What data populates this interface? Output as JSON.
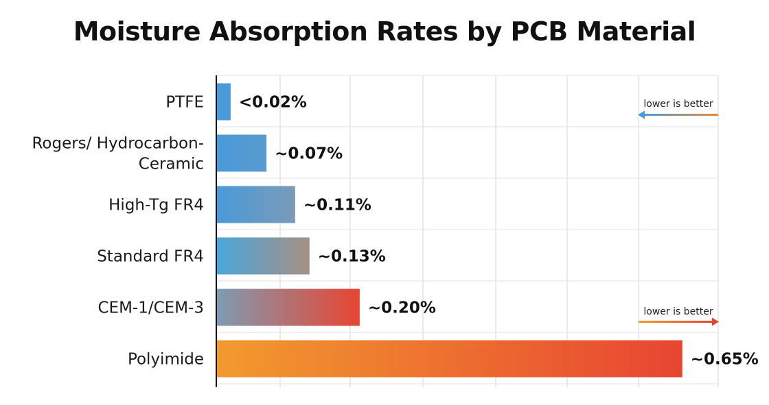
{
  "chart_data": {
    "type": "bar",
    "orientation": "horizontal",
    "title": "Moisture Absorption Rates by PCB Material",
    "xlabel": "",
    "ylabel": "",
    "categories": [
      [
        "PTFE"
      ],
      [
        "Rogers/ Hydrocarbon-",
        "Ceramic"
      ],
      [
        "High-Tg FR4"
      ],
      [
        "Standard FR4"
      ],
      [
        "CEM-1/CEM-3"
      ],
      [
        "Polyimide"
      ]
    ],
    "values": [
      0.02,
      0.07,
      0.11,
      0.13,
      0.2,
      0.65
    ],
    "value_labels": [
      "<0.02%",
      "~0.07%",
      "~0.11%",
      "~0.13%",
      "~0.20%",
      "~0.65%"
    ],
    "xlim": [
      0,
      0.7
    ],
    "grid": true,
    "colors": {
      "low": "#4a9ad8",
      "mid": "#a69082",
      "high": "#e84532",
      "orange": "#f29a2e"
    },
    "annotations": [
      {
        "text": "lower is better",
        "direction": "left",
        "color_from": "#4a9ad8",
        "color_to": "#f08a3c"
      },
      {
        "text": "lower is better",
        "direction": "right",
        "color_from": "#f29a2e",
        "color_to": "#e0452e"
      }
    ]
  }
}
